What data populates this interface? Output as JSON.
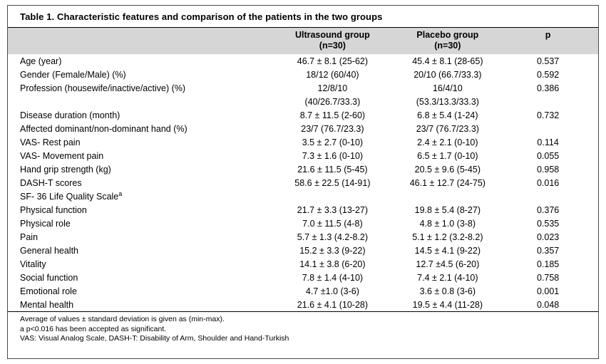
{
  "table": {
    "title": {
      "prefix": "Table 1.",
      "rest": "Characteristic features and comparison of the patients in the two groups"
    },
    "header": {
      "label": "",
      "ultrasound_line1": "Ultrasound group",
      "ultrasound_line2": "(n=30)",
      "placebo_line1": "Placebo group",
      "placebo_line2": "(n=30)",
      "p": "p"
    },
    "rows": [
      {
        "label": "Age (year)",
        "ultrasound": "46.7 ± 8.1 (25-62)",
        "placebo": "45.4 ± 8.1 (28-65)",
        "p": "0.537"
      },
      {
        "label": "Gender (Female/Male) (%)",
        "ultrasound": "18/12 (60/40)",
        "placebo": "20/10 (66.7/33.3)",
        "p": "0.592"
      },
      {
        "label": "Profession (housewife/inactive/active) (%)",
        "ultrasound": "12/8/10",
        "placebo": "16/4/10",
        "p": "0.386"
      },
      {
        "label": "",
        "ultrasound": "(40/26.7/33.3)",
        "placebo": "(53.3/13.3/33.3)",
        "p": ""
      },
      {
        "label": "Disease duration (month)",
        "ultrasound": "8.7 ± 11.5 (2-60)",
        "placebo": "6.8 ± 5.4 (1-24)",
        "p": "0.732"
      },
      {
        "label": "Affected dominant/non-dominant hand (%)",
        "ultrasound": "23/7 (76.7/23.3)",
        "placebo": "23/7 (76.7/23.3)",
        "p": ""
      },
      {
        "label": "VAS- Rest pain",
        "ultrasound": "3.5 ± 2.7 (0-10)",
        "placebo": "2.4 ± 2.1 (0-10)",
        "p": "0.114"
      },
      {
        "label": "VAS- Movement pain",
        "ultrasound": "7.3 ± 1.6 (0-10)",
        "placebo": "6.5 ± 1.7 (0-10)",
        "p": "0.055"
      },
      {
        "label": "Hand grip strength (kg)",
        "ultrasound": "21.6 ± 11.5 (5-45)",
        "placebo": "20.5 ± 9.6 (5-45)",
        "p": "0.958"
      },
      {
        "label": "DASH-T scores",
        "ultrasound": "58.6 ± 22.5 (14-91)",
        "placebo": "46.1 ± 12.7 (24-75)",
        "p": "0.016"
      },
      {
        "label": "SF- 36 Life Quality Scale",
        "label_sup": "a",
        "ultrasound": "",
        "placebo": "",
        "p": ""
      },
      {
        "label": "Physical function",
        "ultrasound": "21.7 ± 3.3 (13-27)",
        "placebo": "19.8 ± 5.4 (8-27)",
        "p": "0.376"
      },
      {
        "label": "Physical role",
        "ultrasound": "7.0 ± 11.5 (4-8)",
        "placebo": "4.8 ± 1.0 (3-8)",
        "p": "0.535"
      },
      {
        "label": "Pain",
        "ultrasound": "5.7 ± 1.3 (4.2-8.2)",
        "placebo": "5.1 ± 1.2 (3.2-8.2)",
        "p": "0.023"
      },
      {
        "label": "General health",
        "ultrasound": "15.2 ± 3.3 (9-22)",
        "placebo": "14.5 ± 4.1 (9-22)",
        "p": "0.357"
      },
      {
        "label": "Vitality",
        "ultrasound": "14.1 ± 3.8 (6-20)",
        "placebo": "12.7 ±4.5 (6-20)",
        "p": "0.185"
      },
      {
        "label": "Social function",
        "ultrasound": "7.8 ± 1.4 (4-10)",
        "placebo": "7.4 ± 2.1 (4-10)",
        "p": "0.758"
      },
      {
        "label": "Emotional role",
        "ultrasound": "4.7 ±1.0 (3-6)",
        "placebo": "3.6 ± 0.8 (3-6)",
        "p": "0.001"
      },
      {
        "label": "Mental health",
        "ultrasound": "21.6 ± 4.1 (10-28)",
        "placebo": "19.5 ± 4.4 (11-28)",
        "p": "0.048"
      }
    ],
    "footnotes": [
      "Average of values ± standard deviation is given as (min-max).",
      "a p<0.016 has been accepted as significant.",
      "VAS: Visual Analog Scale, DASH-T: Disability of Arm, Shoulder and Hand-Turkish"
    ],
    "colors": {
      "header_background": "#d6d6d6",
      "border": "#4a4a4a",
      "rule": "#000000"
    }
  }
}
